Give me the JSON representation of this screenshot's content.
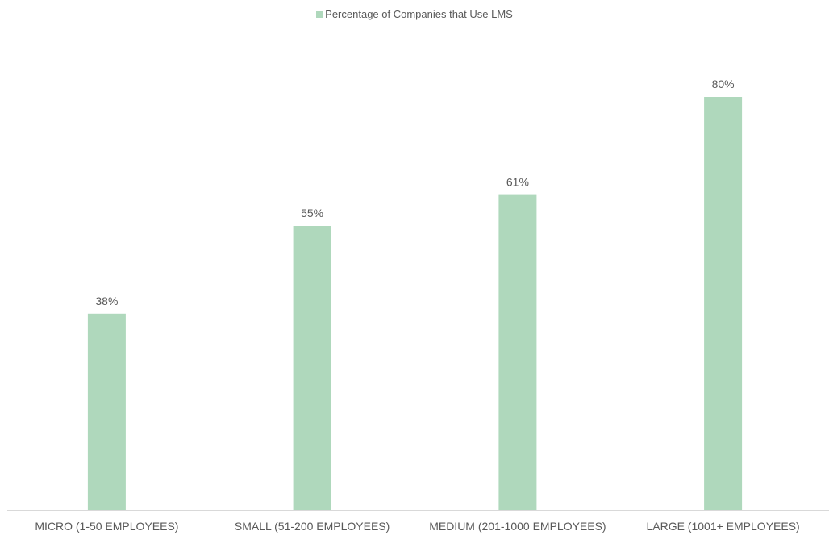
{
  "colors": {
    "bar": "#afd8bc",
    "axis": "#d9d9d9",
    "text": "#595959"
  },
  "chart_data": {
    "type": "bar",
    "categories": [
      "MICRO (1-50 EMPLOYEES)",
      "SMALL (51-200 EMPLOYEES)",
      "MEDIUM (201-1000 EMPLOYEES)",
      "LARGE (1001+ EMPLOYEES)"
    ],
    "series": [
      {
        "name": "Percentage of Companies that Use LMS",
        "values": [
          38,
          55,
          61,
          80
        ],
        "data_labels": [
          "38%",
          "55%",
          "61%",
          "80%"
        ]
      }
    ],
    "value_unit": "%",
    "ylim": [
      0,
      100
    ],
    "grid": false,
    "legend": "top-center",
    "title": "",
    "xlabel": "",
    "ylabel": ""
  }
}
